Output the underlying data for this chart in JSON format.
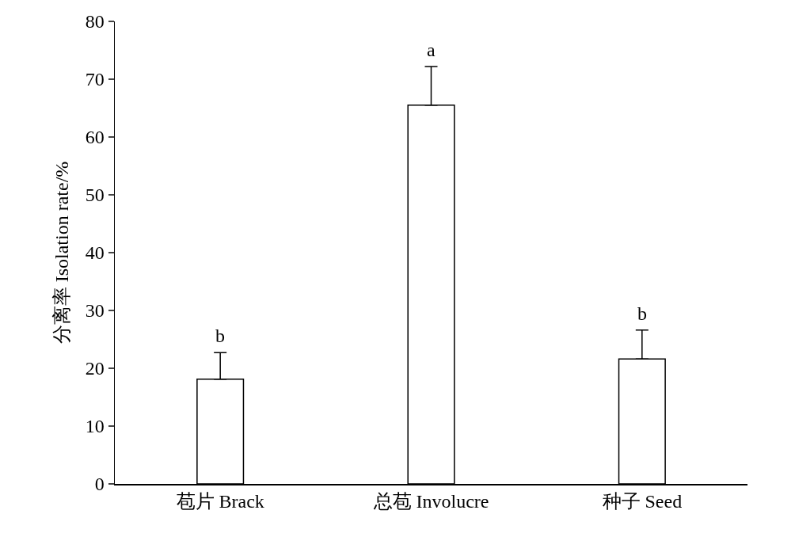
{
  "chart_data": {
    "type": "bar",
    "ylabel": "分离率 Isolation rate/%",
    "categories": [
      "苞片 Brack",
      "总苞 Involucre",
      "种子 Seed"
    ],
    "values": [
      18.1,
      65.5,
      21.6
    ],
    "errors": [
      [
        18.1,
        22.7
      ],
      [
        65.5,
        72.2
      ],
      [
        21.6,
        26.6
      ]
    ],
    "color": "#ffffff",
    "ylim": [
      0,
      80
    ],
    "yticks": [
      0,
      10,
      20,
      30,
      40,
      50,
      60,
      70,
      80
    ],
    "grid": false,
    "annotations": [
      {
        "text": "b",
        "x": "苞片 Brack",
        "y": 22.7
      },
      {
        "text": "a",
        "x": "总苞 Involucre",
        "y": 72.2
      },
      {
        "text": "b",
        "x": "种子 Seed",
        "y": 26.6
      }
    ]
  }
}
